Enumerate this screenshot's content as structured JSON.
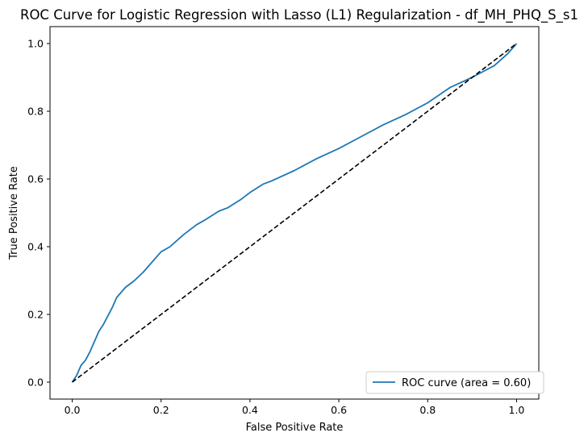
{
  "chart_data": {
    "type": "line",
    "title": "ROC Curve for Logistic Regression with Lasso (L1) Regularization - df_MH_PHQ_S_s1",
    "xlabel": "False Positive Rate",
    "ylabel": "True Positive Rate",
    "xlim": [
      -0.05,
      1.05
    ],
    "ylim": [
      -0.05,
      1.05
    ],
    "xticks": [
      0.0,
      0.2,
      0.4,
      0.6,
      0.8,
      1.0
    ],
    "yticks": [
      0.0,
      0.2,
      0.4,
      0.6,
      0.8,
      1.0
    ],
    "xtick_labels": [
      "0.0",
      "0.2",
      "0.4",
      "0.6",
      "0.8",
      "1.0"
    ],
    "ytick_labels": [
      "0.0",
      "0.2",
      "0.4",
      "0.6",
      "0.8",
      "1.0"
    ],
    "grid": false,
    "legend_position": "lower-right",
    "series": [
      {
        "name": "ROC curve (area = 0.60)",
        "color": "#1f77b4",
        "style": "solid",
        "x": [
          0.0,
          0.005,
          0.01,
          0.02,
          0.03,
          0.04,
          0.05,
          0.06,
          0.07,
          0.08,
          0.09,
          0.1,
          0.12,
          0.14,
          0.16,
          0.18,
          0.2,
          0.22,
          0.25,
          0.28,
          0.3,
          0.33,
          0.35,
          0.38,
          0.4,
          0.43,
          0.45,
          0.5,
          0.55,
          0.6,
          0.65,
          0.7,
          0.75,
          0.8,
          0.85,
          0.9,
          0.95,
          0.98,
          1.0
        ],
        "y": [
          0.0,
          0.01,
          0.02,
          0.05,
          0.065,
          0.09,
          0.12,
          0.15,
          0.17,
          0.195,
          0.22,
          0.25,
          0.28,
          0.3,
          0.325,
          0.355,
          0.385,
          0.4,
          0.435,
          0.465,
          0.48,
          0.505,
          0.515,
          0.54,
          0.56,
          0.585,
          0.595,
          0.625,
          0.66,
          0.69,
          0.725,
          0.76,
          0.79,
          0.825,
          0.87,
          0.9,
          0.935,
          0.97,
          1.0
        ]
      },
      {
        "name": "",
        "color": "#000000",
        "style": "dashed",
        "x": [
          0.0,
          1.0
        ],
        "y": [
          0.0,
          1.0
        ]
      }
    ]
  }
}
